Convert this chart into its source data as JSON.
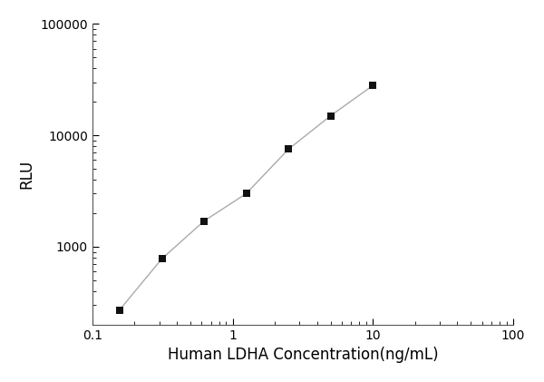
{
  "x_data": [
    0.156,
    0.313,
    0.625,
    1.25,
    2.5,
    5.0,
    10.0
  ],
  "y_data": [
    270,
    780,
    1700,
    3000,
    7500,
    15000,
    28000
  ],
  "xlabel": "Human LDHA Concentration(ng/mL)",
  "ylabel": "RLU",
  "xlim": [
    0.1,
    100
  ],
  "ylim": [
    200,
    100000
  ],
  "marker": "s",
  "marker_color": "#111111",
  "marker_size": 6,
  "line_color": "#aaaaaa",
  "line_style": "-",
  "line_width": 1.0,
  "background_color": "#ffffff",
  "xlabel_fontsize": 12,
  "ylabel_fontsize": 12,
  "tick_fontsize": 10,
  "spine_color": "#555555"
}
